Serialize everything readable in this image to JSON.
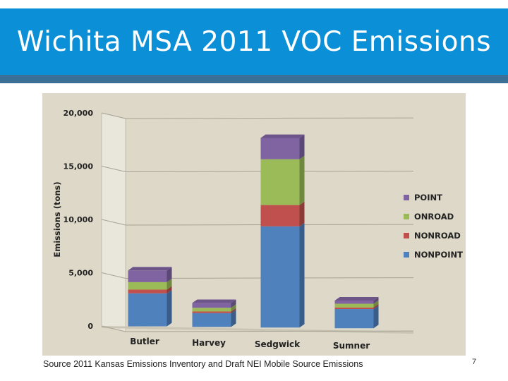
{
  "slide": {
    "title": "Wichita MSA 2011 VOC Emissions",
    "source": "Source 2011 Kansas Emissions Inventory and Draft NEI Mobile Source Emissions",
    "page_number": "7"
  },
  "colors": {
    "title_bar": "#0b8fd6",
    "panel_background": "#ddd8c7",
    "NONPOINT": "#4f81bd",
    "NONROAD": "#c0504d",
    "ONROAD": "#9bbb59",
    "POINT": "#8064a2"
  },
  "chart_data": {
    "type": "bar",
    "stacked": true,
    "title": "",
    "xlabel": "",
    "ylabel": "Emissions (tons)",
    "ylim": [
      0,
      20000
    ],
    "yticks": [
      "0",
      "5,000",
      "10,000",
      "15,000",
      "20,000"
    ],
    "grid": true,
    "legend_position": "right",
    "categories": [
      "Butler",
      "Harvey",
      "Sedgwick",
      "Sumner"
    ],
    "series": [
      {
        "name": "NONPOINT",
        "values": [
          3100,
          1300,
          9500,
          1800
        ]
      },
      {
        "name": "NONROAD",
        "values": [
          350,
          150,
          2000,
          150
        ]
      },
      {
        "name": "ONROAD",
        "values": [
          700,
          350,
          4300,
          350
        ]
      },
      {
        "name": "POINT",
        "values": [
          1100,
          450,
          2000,
          300
        ]
      }
    ],
    "legend_order": [
      "POINT",
      "ONROAD",
      "NONROAD",
      "NONPOINT"
    ]
  }
}
